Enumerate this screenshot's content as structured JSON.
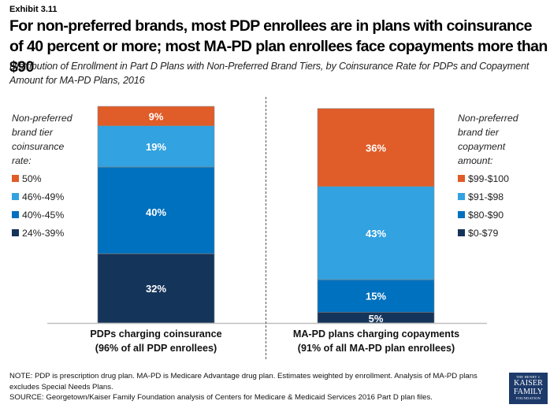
{
  "header": {
    "exhibit": "Exhibit 3.11",
    "title": "For non-preferred brands, most PDP enrollees are in plans with coinsurance of 40 percent or more; most MA-PD plan enrollees face copayments more than $90",
    "subtitle": "Distribution of Enrollment in Part D Plans with Non-Preferred Brand Tiers, by Coinsurance Rate for PDPs and Copayment Amount for MA-PD Plans, 2016"
  },
  "colors": {
    "orange": "#E05C28",
    "light_blue": "#32A2E0",
    "mid_blue": "#0071BE",
    "navy": "#15345A",
    "axis": "#BFBFBF",
    "divider": "#555555"
  },
  "chart_data": {
    "type": "bar",
    "stacked": true,
    "percent_stacked": true,
    "title": "Distribution of Enrollment in Part D Plans with Non-Preferred Brand Tiers, by Coinsurance Rate for PDPs and Copayment Amount for MA-PD Plans, 2016",
    "xlabel": "",
    "ylabel": "",
    "ylim": [
      0,
      100
    ],
    "grid": false,
    "categories": [
      "PDPs charging coinsurance (96% of all PDP enrollees)",
      "MA-PD plans charging copayments (91% of all MA-PD plan enrollees)"
    ],
    "category_lines": [
      [
        "PDPs charging coinsurance",
        "(96% of all PDP enrollees)"
      ],
      [
        "MA-PD plans charging copayments",
        "(91% of all MA-PD plan enrollees)"
      ]
    ],
    "bars": [
      {
        "name": "PDPs charging coinsurance",
        "legend_title": [
          "Non-preferred",
          "brand tier",
          "coinsurance",
          "rate:"
        ],
        "legend_position": "left",
        "segments": [
          {
            "label": "24%-39%",
            "value": 32,
            "color": "#15345A",
            "data_label": "32%"
          },
          {
            "label": "40%-45%",
            "value": 40,
            "color": "#0071BE",
            "data_label": "40%"
          },
          {
            "label": "46%-49%",
            "value": 19,
            "color": "#32A2E0",
            "data_label": "19%"
          },
          {
            "label": "50%",
            "value": 9,
            "color": "#E05C28",
            "data_label": "9%"
          }
        ]
      },
      {
        "name": "MA-PD plans charging copayments",
        "legend_title": [
          "Non-preferred",
          "brand tier",
          "copayment",
          "amount:"
        ],
        "legend_position": "right",
        "segments": [
          {
            "label": "$0-$79",
            "value": 5,
            "color": "#15345A",
            "data_label": "5%"
          },
          {
            "label": "$80-$90",
            "value": 15,
            "color": "#0071BE",
            "data_label": "15%"
          },
          {
            "label": "$91-$98",
            "value": 43,
            "color": "#32A2E0",
            "data_label": "43%"
          },
          {
            "label": "$99-$100",
            "value": 36,
            "color": "#E05C28",
            "data_label": "36%"
          }
        ]
      }
    ]
  },
  "legends": {
    "left": {
      "title": [
        "Non-preferred",
        "brand tier",
        "coinsurance",
        "rate:"
      ],
      "items": [
        {
          "label": "50%",
          "color": "#E05C28"
        },
        {
          "label": "46%-49%",
          "color": "#32A2E0"
        },
        {
          "label": "40%-45%",
          "color": "#0071BE"
        },
        {
          "label": "24%-39%",
          "color": "#15345A"
        }
      ]
    },
    "right": {
      "title": [
        "Non-preferred",
        "brand tier",
        "copayment",
        "amount:"
      ],
      "items": [
        {
          "label": "$99-$100",
          "color": "#E05C28"
        },
        {
          "label": "$91-$98",
          "color": "#32A2E0"
        },
        {
          "label": "$80-$90",
          "color": "#0071BE"
        },
        {
          "label": "$0-$79",
          "color": "#15345A"
        }
      ]
    }
  },
  "footer": {
    "note": "NOTE: PDP is prescription drug plan. MA-PD is Medicare Advantage drug plan. Estimates weighted by enrollment. Analysis of MA-PD plans excludes Special Needs Plans.",
    "source": "SOURCE: Georgetown/Kaiser Family Foundation analysis of Centers for Medicare & Medicaid Services 2016 Part D plan files.",
    "logo": {
      "line1": "THE HENRY J.",
      "line2": "KAISER",
      "line3": "FAMILY",
      "line4": "FOUNDATION"
    }
  }
}
